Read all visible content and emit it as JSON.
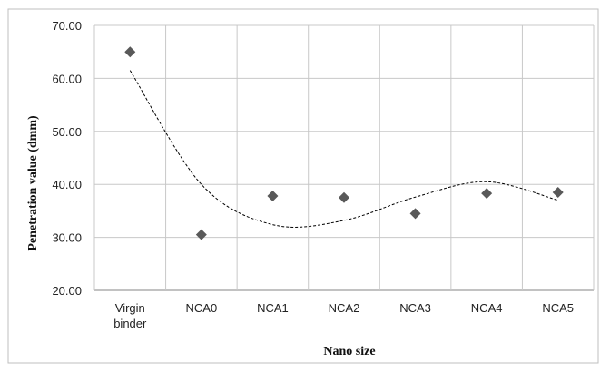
{
  "chart_data": {
    "type": "scatter",
    "title": "",
    "xlabel": "Nano size",
    "ylabel": "Penetration value (dmm)",
    "categories": [
      "Virgin binder",
      "NCA0",
      "NCA1",
      "NCA2",
      "NCA3",
      "NCA4",
      "NCA5"
    ],
    "category_lines": [
      [
        "Virgin",
        "binder"
      ],
      [
        "NCA0"
      ],
      [
        "NCA1"
      ],
      [
        "NCA2"
      ],
      [
        "NCA3"
      ],
      [
        "NCA4"
      ],
      [
        "NCA5"
      ]
    ],
    "ylim": [
      20,
      70
    ],
    "yticks": [
      "20.00",
      "30.00",
      "40.00",
      "50.00",
      "60.00",
      "70.00"
    ],
    "grid": true,
    "series": [
      {
        "values": [
          65.0,
          30.5,
          37.8,
          37.5,
          34.5,
          38.3,
          38.5
        ],
        "marker": "diamond",
        "color": "#595959"
      }
    ],
    "trendline": {
      "type": "polynomial",
      "style": "dashed",
      "color": "#000000",
      "values": [
        61.5,
        40.0,
        32.4,
        33.2,
        37.6,
        40.5,
        37.0
      ]
    }
  }
}
